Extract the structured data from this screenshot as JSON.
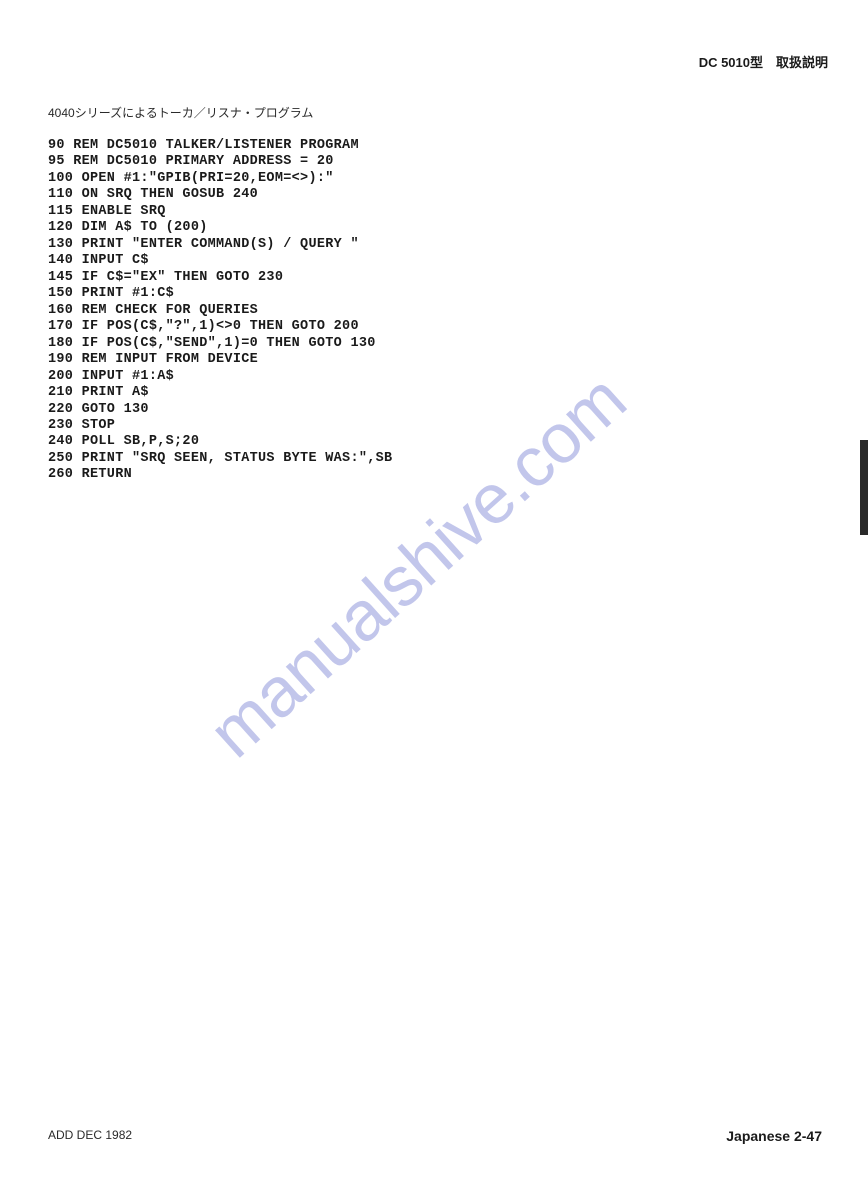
{
  "header": {
    "right_text": "DC 5010型　取扱説明"
  },
  "section_title": "4040シリーズによるトーカ／リスナ・プログラム",
  "code_lines": [
    "90 REM DC5010 TALKER/LISTENER PROGRAM",
    "95 REM DC5010 PRIMARY ADDRESS = 20",
    "100 OPEN #1:\"GPIB(PRI=20,EOM=<>):\"",
    "110 ON SRQ THEN GOSUB 240",
    "115 ENABLE SRQ",
    "120 DIM A$ TO (200)",
    "130 PRINT \"ENTER COMMAND(S) / QUERY \"",
    "140 INPUT C$",
    "145 IF C$=\"EX\" THEN GOTO 230",
    "150 PRINT #1:C$",
    "160 REM CHECK FOR QUERIES",
    "170 IF POS(C$,\"?\",1)<>0 THEN GOTO 200",
    "180 IF POS(C$,\"SEND\",1)=0 THEN GOTO 130",
    "190 REM INPUT FROM DEVICE",
    "200 INPUT #1:A$",
    "210 PRINT A$",
    "220 GOTO 130",
    "230 STOP",
    "240 POLL SB,P,S;20",
    "250 PRINT \"SRQ SEEN, STATUS BYTE WAS:\",SB",
    "260 RETURN"
  ],
  "watermark": "manualshive.com",
  "footer": {
    "left": "ADD DEC 1982",
    "right": "Japanese 2-47"
  },
  "colors": {
    "background": "#ffffff",
    "text_primary": "#1a1a1a",
    "text_secondary": "#2a2a2a",
    "watermark_color": "#b8bde8",
    "side_tab_color": "#2a2a2a"
  },
  "typography": {
    "header_fontsize": 13,
    "section_title_fontsize": 12,
    "code_fontsize": 13.5,
    "footer_fontsize": 12,
    "watermark_fontsize": 70,
    "code_font": "Courier New",
    "body_font": "sans-serif"
  }
}
